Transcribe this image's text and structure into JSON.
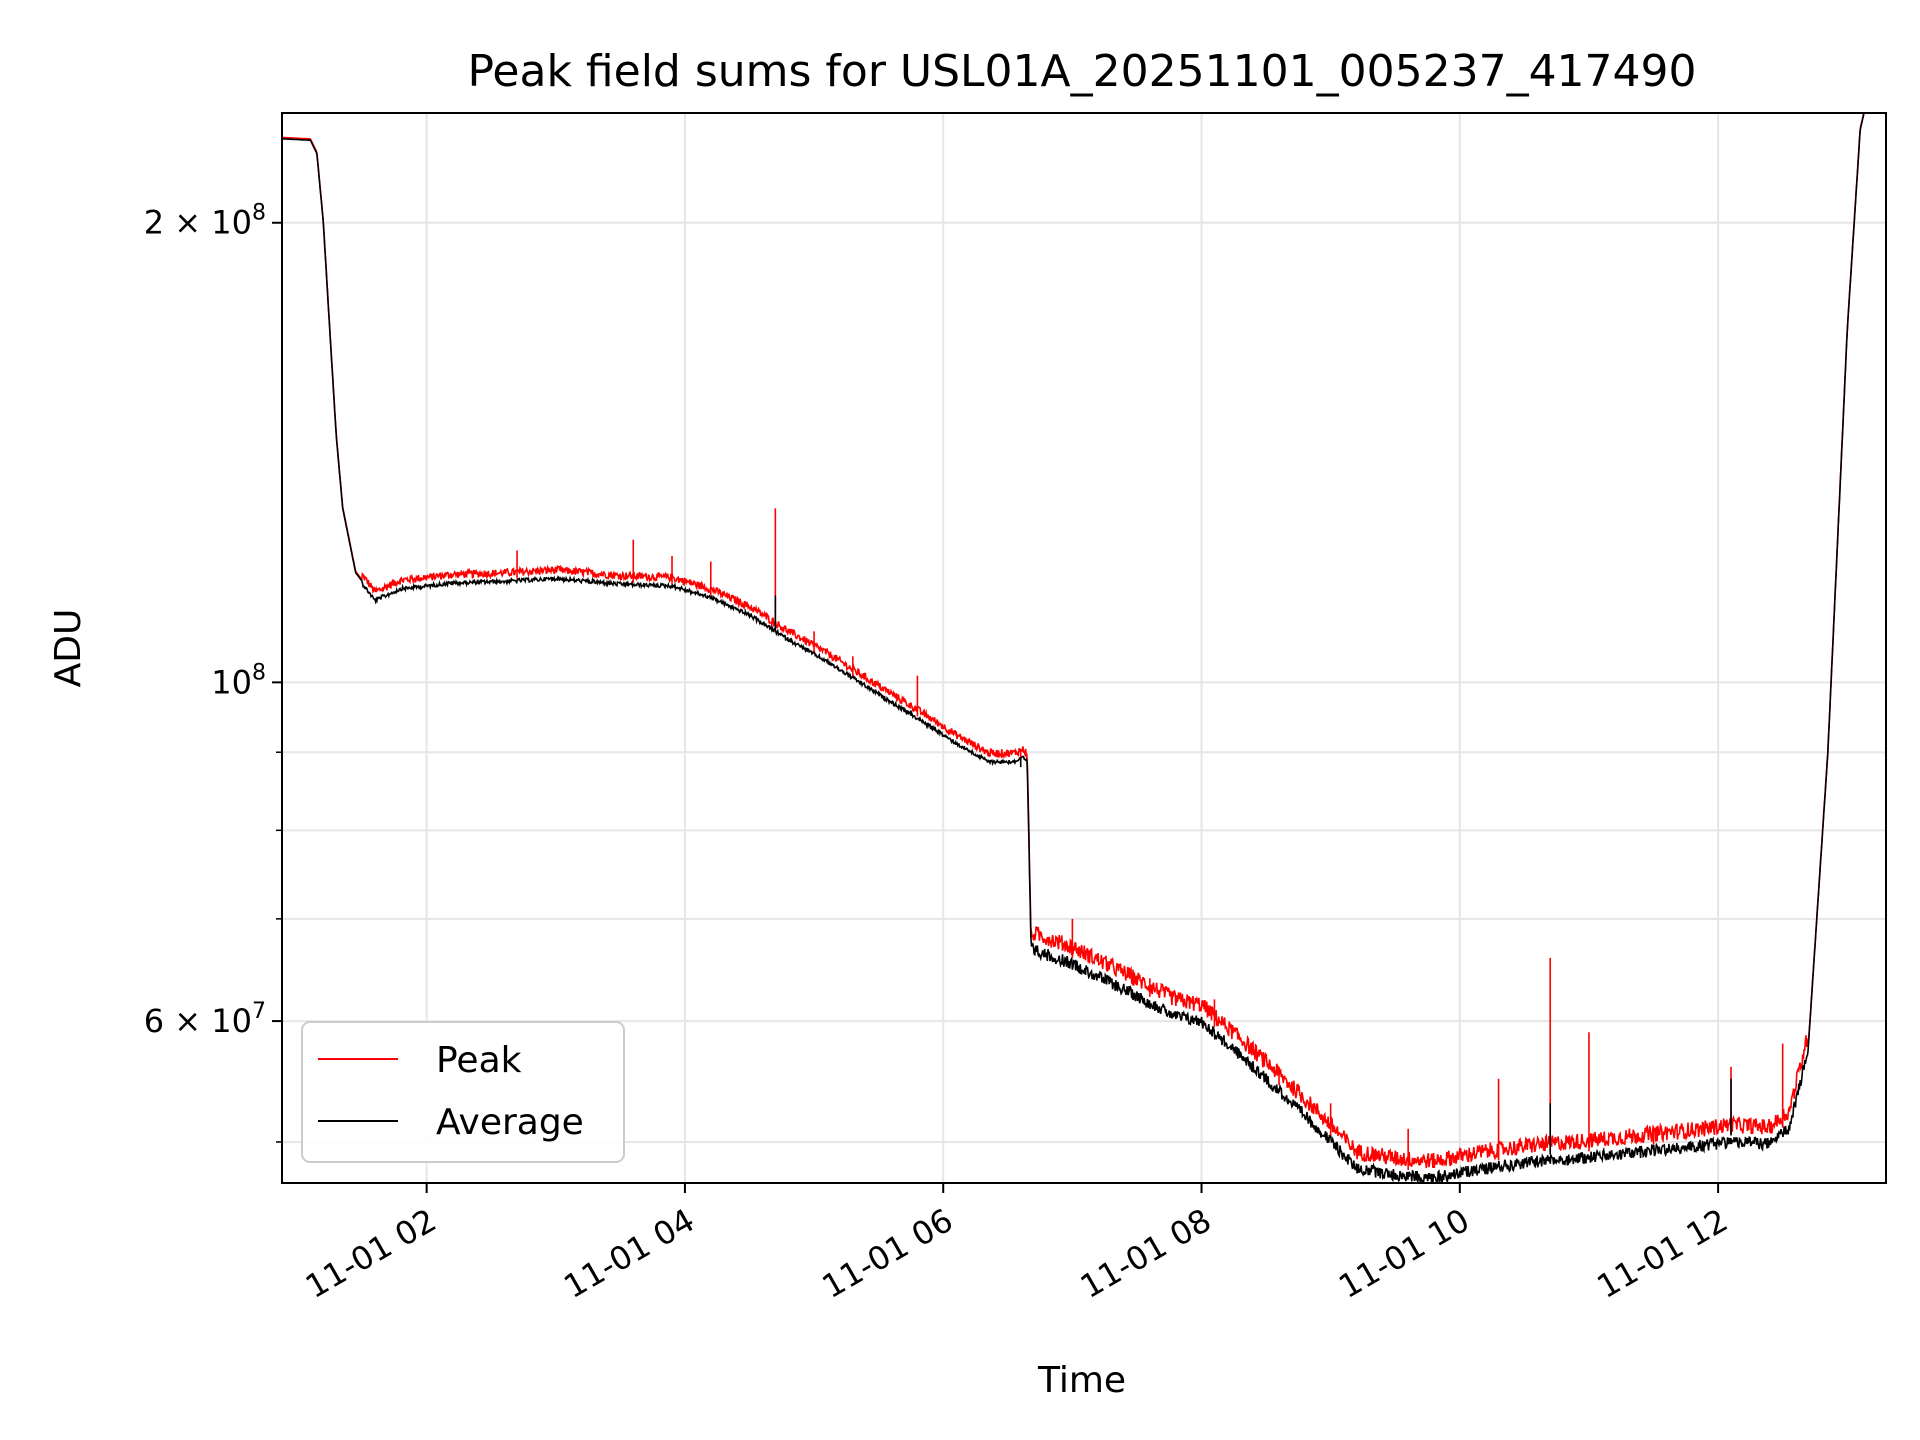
{
  "chart_data": {
    "type": "line",
    "title": "Peak field sums for USL01A_20251101_005237_417490",
    "xlabel": "Time",
    "ylabel": "ADU",
    "yscale": "log",
    "ylim": [
      47000000,
      236000000
    ],
    "xlim_hours": [
      0.88,
      13.3
    ],
    "grid": true,
    "legend_position": "lower-left",
    "x_ticks": [
      {
        "value": 2,
        "label": "11-01 02"
      },
      {
        "value": 4,
        "label": "11-01 04"
      },
      {
        "value": 6,
        "label": "11-01 06"
      },
      {
        "value": 8,
        "label": "11-01 08"
      },
      {
        "value": 10,
        "label": "11-01 10"
      },
      {
        "value": 12,
        "label": "11-01 12"
      }
    ],
    "y_major_ticks": [
      {
        "value": 200000000,
        "base": "2 × 10",
        "exp": "8"
      },
      {
        "value": 100000000,
        "base": "10",
        "exp": "8"
      },
      {
        "value": 60000000,
        "base": "6 × 10",
        "exp": "7"
      }
    ],
    "y_minor_ticks": [
      50000000,
      70000000,
      80000000,
      90000000
    ],
    "series": [
      {
        "name": "Peak",
        "color": "#ff0000",
        "spikes": [
          [
            2.7,
            122000000
          ],
          [
            3.6,
            124000000
          ],
          [
            3.9,
            121000000
          ],
          [
            4.2,
            120000000
          ],
          [
            4.7,
            130000000
          ],
          [
            5.0,
            108000000
          ],
          [
            5.3,
            104000000
          ],
          [
            5.8,
            101000000
          ],
          [
            6.6,
            90000000
          ],
          [
            7.0,
            70000000
          ],
          [
            7.6,
            64000000
          ],
          [
            8.1,
            62000000
          ],
          [
            8.6,
            56000000
          ],
          [
            9.0,
            53000000
          ],
          [
            9.6,
            51000000
          ],
          [
            10.3,
            55000000
          ],
          [
            10.7,
            66000000
          ],
          [
            11.0,
            59000000
          ],
          [
            11.5,
            51000000
          ],
          [
            12.1,
            56000000
          ],
          [
            12.5,
            58000000
          ]
        ]
      },
      {
        "name": "Average",
        "color": "#000000",
        "spikes": [
          [
            4.7,
            114000000
          ],
          [
            6.6,
            88000000
          ],
          [
            10.7,
            53000000
          ],
          [
            12.1,
            55000000
          ]
        ]
      }
    ],
    "envelope": [
      [
        0.88,
        227000000
      ],
      [
        1.1,
        226500000
      ],
      [
        1.15,
        222000000
      ],
      [
        1.2,
        200000000
      ],
      [
        1.25,
        170000000
      ],
      [
        1.3,
        145000000
      ],
      [
        1.35,
        130000000
      ],
      [
        1.45,
        118000000
      ],
      [
        1.6,
        113500000
      ],
      [
        1.8,
        115500000
      ],
      [
        2.2,
        116500000
      ],
      [
        2.6,
        116800000
      ],
      [
        3.0,
        117300000
      ],
      [
        3.5,
        116300000
      ],
      [
        3.9,
        116000000
      ],
      [
        4.2,
        114000000
      ],
      [
        4.5,
        111000000
      ],
      [
        4.8,
        107000000
      ],
      [
        5.1,
        103500000
      ],
      [
        5.5,
        98500000
      ],
      [
        5.8,
        95000000
      ],
      [
        6.1,
        91500000
      ],
      [
        6.35,
        89000000
      ],
      [
        6.55,
        89000000
      ],
      [
        6.62,
        89500000
      ],
      [
        6.65,
        89000000
      ],
      [
        6.68,
        67500000
      ],
      [
        7.0,
        66000000
      ],
      [
        7.4,
        63500000
      ],
      [
        7.8,
        61000000
      ],
      [
        8.0,
        60500000
      ],
      [
        8.3,
        57500000
      ],
      [
        8.6,
        54500000
      ],
      [
        8.9,
        51500000
      ],
      [
        9.2,
        48500000
      ],
      [
        9.5,
        48000000
      ],
      [
        9.8,
        47800000
      ],
      [
        10.2,
        48500000
      ],
      [
        10.6,
        49000000
      ],
      [
        11.0,
        49300000
      ],
      [
        11.5,
        49800000
      ],
      [
        11.9,
        50200000
      ],
      [
        12.1,
        50500000
      ],
      [
        12.4,
        50300000
      ],
      [
        12.55,
        51500000
      ],
      [
        12.7,
        58000000
      ],
      [
        12.85,
        90000000
      ],
      [
        13.0,
        170000000
      ],
      [
        13.1,
        230000000
      ],
      [
        13.13,
        236000000
      ]
    ]
  }
}
